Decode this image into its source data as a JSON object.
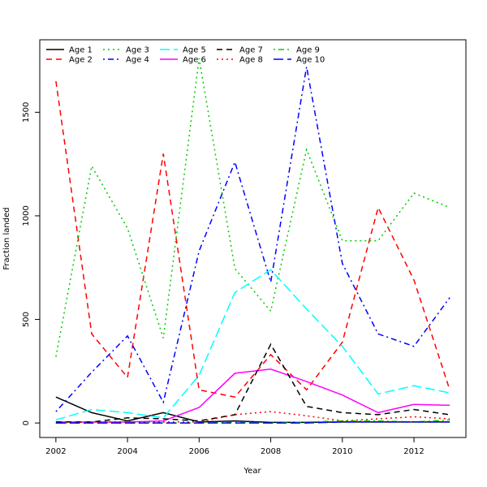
{
  "chart_data": {
    "type": "line",
    "title": "",
    "xlabel": "Year",
    "ylabel": "Fraction landed",
    "xlim": [
      2001.55,
      2013.45
    ],
    "ylim": [
      -70,
      1850
    ],
    "xticks": [
      2002,
      2004,
      2006,
      2008,
      2010,
      2012
    ],
    "yticks": [
      0,
      500,
      1000,
      1500
    ],
    "grid": false,
    "legend_position": "top-left",
    "x": [
      2002,
      2003,
      2004,
      2005,
      2006,
      2007,
      2008,
      2009,
      2010,
      2011,
      2012,
      2013
    ],
    "series": [
      {
        "name": "Age 1",
        "color": "#000000",
        "dash": "solid",
        "values": [
          125,
          50,
          10,
          50,
          5,
          10,
          3,
          3,
          5,
          5,
          5,
          5
        ]
      },
      {
        "name": "Age 2",
        "color": "#ff0000",
        "dash": "dashed",
        "values": [
          1650,
          430,
          220,
          1300,
          160,
          125,
          330,
          160,
          390,
          1040,
          690,
          160
        ]
      },
      {
        "name": "Age 3",
        "color": "#00cd00",
        "dash": "dotted",
        "values": [
          320,
          1240,
          940,
          410,
          1760,
          745,
          540,
          1320,
          880,
          880,
          1110,
          1040
        ]
      },
      {
        "name": "Age 4",
        "color": "#0000ff",
        "dash": "dotdash",
        "values": [
          55,
          245,
          420,
          100,
          830,
          1260,
          680,
          1720,
          770,
          430,
          370,
          605
        ]
      },
      {
        "name": "Age 5",
        "color": "#00ffff",
        "dash": "longdash",
        "values": [
          15,
          65,
          50,
          25,
          230,
          630,
          740,
          550,
          370,
          140,
          180,
          145
        ]
      },
      {
        "name": "Age 6",
        "color": "#ff00ff",
        "dash": "solid",
        "values": [
          5,
          5,
          5,
          10,
          75,
          240,
          260,
          200,
          135,
          50,
          90,
          85
        ]
      },
      {
        "name": "Age 7",
        "color": "#000000",
        "dash": "dashed",
        "values": [
          5,
          5,
          25,
          20,
          10,
          40,
          380,
          80,
          50,
          40,
          65,
          40
        ]
      },
      {
        "name": "Age 8",
        "color": "#ff0000",
        "dash": "dotted",
        "values": [
          0,
          5,
          5,
          5,
          5,
          40,
          55,
          35,
          10,
          20,
          30,
          20
        ]
      },
      {
        "name": "Age 9",
        "color": "#00cd00",
        "dash": "dotdash",
        "values": [
          0,
          0,
          0,
          0,
          0,
          5,
          0,
          5,
          10,
          10,
          5,
          15
        ]
      },
      {
        "name": "Age 10",
        "color": "#0000ff",
        "dash": "longdash",
        "values": [
          0,
          0,
          0,
          0,
          0,
          0,
          0,
          0,
          5,
          5,
          5,
          5
        ]
      }
    ]
  }
}
